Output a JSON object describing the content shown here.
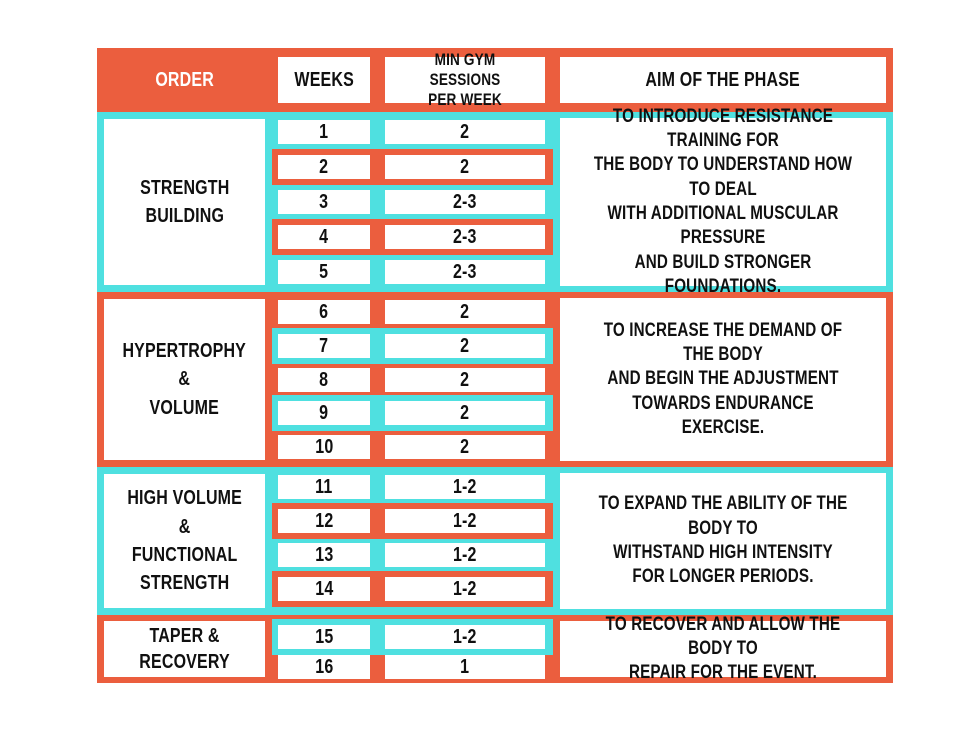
{
  "colors": {
    "orange": "#EB5E3E",
    "cyan": "#4FE0E0",
    "text": "#101010",
    "header_text": "#ffffff",
    "cell_bg": "#ffffff"
  },
  "header": {
    "order": "ORDER",
    "weeks": "WEEKS",
    "sessions": "MIN GYM SESSIONS\nPER WEEK",
    "aim": "AIM OF THE PHASE"
  },
  "sections": [
    {
      "label": "STRENGTH\nBUILDING",
      "tone": "cyan",
      "rows": [
        {
          "week": "1",
          "sessions": "2",
          "banded": false
        },
        {
          "week": "2",
          "sessions": "2",
          "banded": true
        },
        {
          "week": "3",
          "sessions": "2-3",
          "banded": false
        },
        {
          "week": "4",
          "sessions": "2-3",
          "banded": true
        },
        {
          "week": "5",
          "sessions": "2-3",
          "banded": false
        }
      ],
      "aim": "TO INTRODUCE RESISTANCE TRAINING FOR\nTHE BODY TO UNDERSTAND HOW TO DEAL\nWITH ADDITIONAL MUSCULAR PRESSURE\nAND BUILD STRONGER FOUNDATIONS."
    },
    {
      "label": "HYPERTROPHY\n&\nVOLUME",
      "tone": "orange",
      "rows": [
        {
          "week": "6",
          "sessions": "2",
          "banded": false
        },
        {
          "week": "7",
          "sessions": "2",
          "banded": true
        },
        {
          "week": "8",
          "sessions": "2",
          "banded": false
        },
        {
          "week": "9",
          "sessions": "2",
          "banded": true
        },
        {
          "week": "10",
          "sessions": "2",
          "banded": false
        }
      ],
      "aim": "TO INCREASE THE DEMAND OF THE BODY\nAND BEGIN THE ADJUSTMENT\nTOWARDS ENDURANCE EXERCISE."
    },
    {
      "label": "HIGH VOLUME\n&\nFUNCTIONAL\nSTRENGTH",
      "tone": "cyan",
      "rows": [
        {
          "week": "11",
          "sessions": "1-2",
          "banded": false
        },
        {
          "week": "12",
          "sessions": "1-2",
          "banded": true
        },
        {
          "week": "13",
          "sessions": "1-2",
          "banded": false
        },
        {
          "week": "14",
          "sessions": "1-2",
          "banded": true
        }
      ],
      "aim": "TO EXPAND THE ABILITY OF THE BODY TO\nWITHSTAND HIGH INTENSITY\nFOR LONGER PERIODS."
    },
    {
      "label": "TAPER &\nRECOVERY",
      "tone": "orange",
      "rows": [
        {
          "week": "15",
          "sessions": "1-2",
          "banded": true
        },
        {
          "week": "16",
          "sessions": "1",
          "banded": false
        }
      ],
      "aim": "TO RECOVER AND ALLOW THE BODY TO\nREPAIR FOR THE EVENT."
    }
  ],
  "chart_data": {
    "type": "table",
    "columns": [
      "ORDER",
      "WEEKS",
      "MIN GYM SESSIONS PER WEEK",
      "AIM OF THE PHASE"
    ],
    "rows": [
      {
        "order": "STRENGTH BUILDING",
        "weeks": [
          1,
          2,
          3,
          4,
          5
        ],
        "min_gym_sessions_per_week": [
          "2",
          "2",
          "2-3",
          "2-3",
          "2-3"
        ],
        "aim": "TO INTRODUCE RESISTANCE TRAINING FOR THE BODY TO UNDERSTAND HOW TO DEAL WITH ADDITIONAL MUSCULAR PRESSURE AND BUILD STRONGER FOUNDATIONS."
      },
      {
        "order": "HYPERTROPHY & VOLUME",
        "weeks": [
          6,
          7,
          8,
          9,
          10
        ],
        "min_gym_sessions_per_week": [
          "2",
          "2",
          "2",
          "2",
          "2"
        ],
        "aim": "TO INCREASE THE DEMAND OF THE BODY AND BEGIN THE ADJUSTMENT TOWARDS ENDURANCE EXERCISE."
      },
      {
        "order": "HIGH VOLUME & FUNCTIONAL STRENGTH",
        "weeks": [
          11,
          12,
          13,
          14
        ],
        "min_gym_sessions_per_week": [
          "1-2",
          "1-2",
          "1-2",
          "1-2"
        ],
        "aim": "TO EXPAND THE ABILITY OF THE BODY TO WITHSTAND HIGH INTENSITY FOR LONGER PERIODS."
      },
      {
        "order": "TAPER & RECOVERY",
        "weeks": [
          15,
          16
        ],
        "min_gym_sessions_per_week": [
          "1-2",
          "1"
        ],
        "aim": "TO RECOVER AND ALLOW THE BODY TO REPAIR FOR THE EVENT."
      }
    ]
  }
}
